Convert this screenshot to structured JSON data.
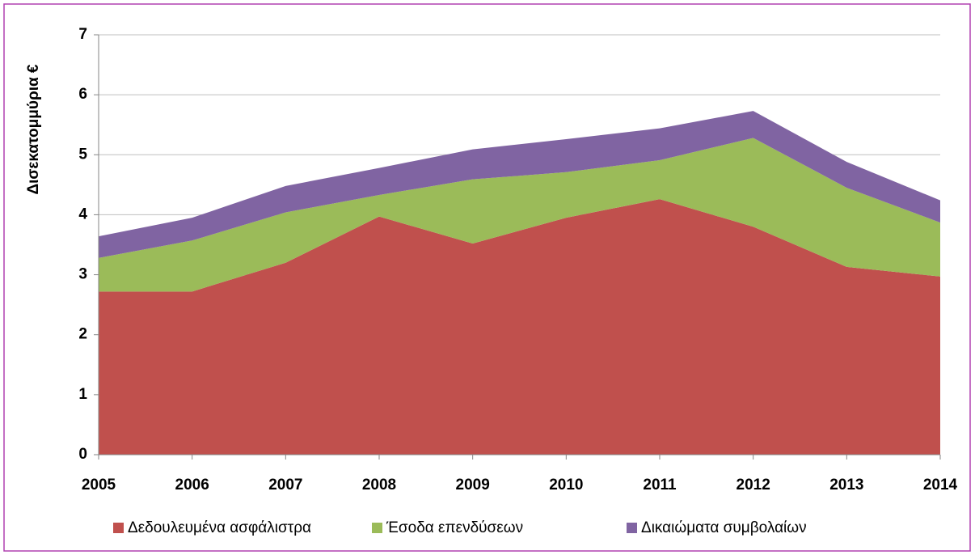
{
  "chart_data": {
    "type": "stacked_area",
    "y_label": "Δισεκατομμύρια €",
    "categories": [
      "2005",
      "2006",
      "2007",
      "2008",
      "2009",
      "2010",
      "2011",
      "2012",
      "2013",
      "2014"
    ],
    "series": [
      {
        "name": "Δεδουλευμένα ασφάλιστρα",
        "color": "#c0504d",
        "values": [
          2.72,
          2.72,
          3.2,
          3.97,
          3.52,
          3.95,
          4.26,
          3.8,
          3.13,
          2.97
        ]
      },
      {
        "name": "Έσοδα επενδύσεων",
        "color": "#9bbb59",
        "values": [
          0.56,
          0.85,
          0.84,
          0.36,
          1.07,
          0.76,
          0.65,
          1.48,
          1.32,
          0.9
        ]
      },
      {
        "name": "Δικαιώματα συμβολαίων",
        "color": "#8064a2",
        "values": [
          0.36,
          0.38,
          0.44,
          0.45,
          0.5,
          0.55,
          0.53,
          0.45,
          0.43,
          0.37
        ]
      }
    ],
    "ylim": [
      0,
      7
    ],
    "yticks": [
      0,
      1,
      2,
      3,
      4,
      5,
      6,
      7
    ],
    "grid": true,
    "legend": "bottom"
  }
}
